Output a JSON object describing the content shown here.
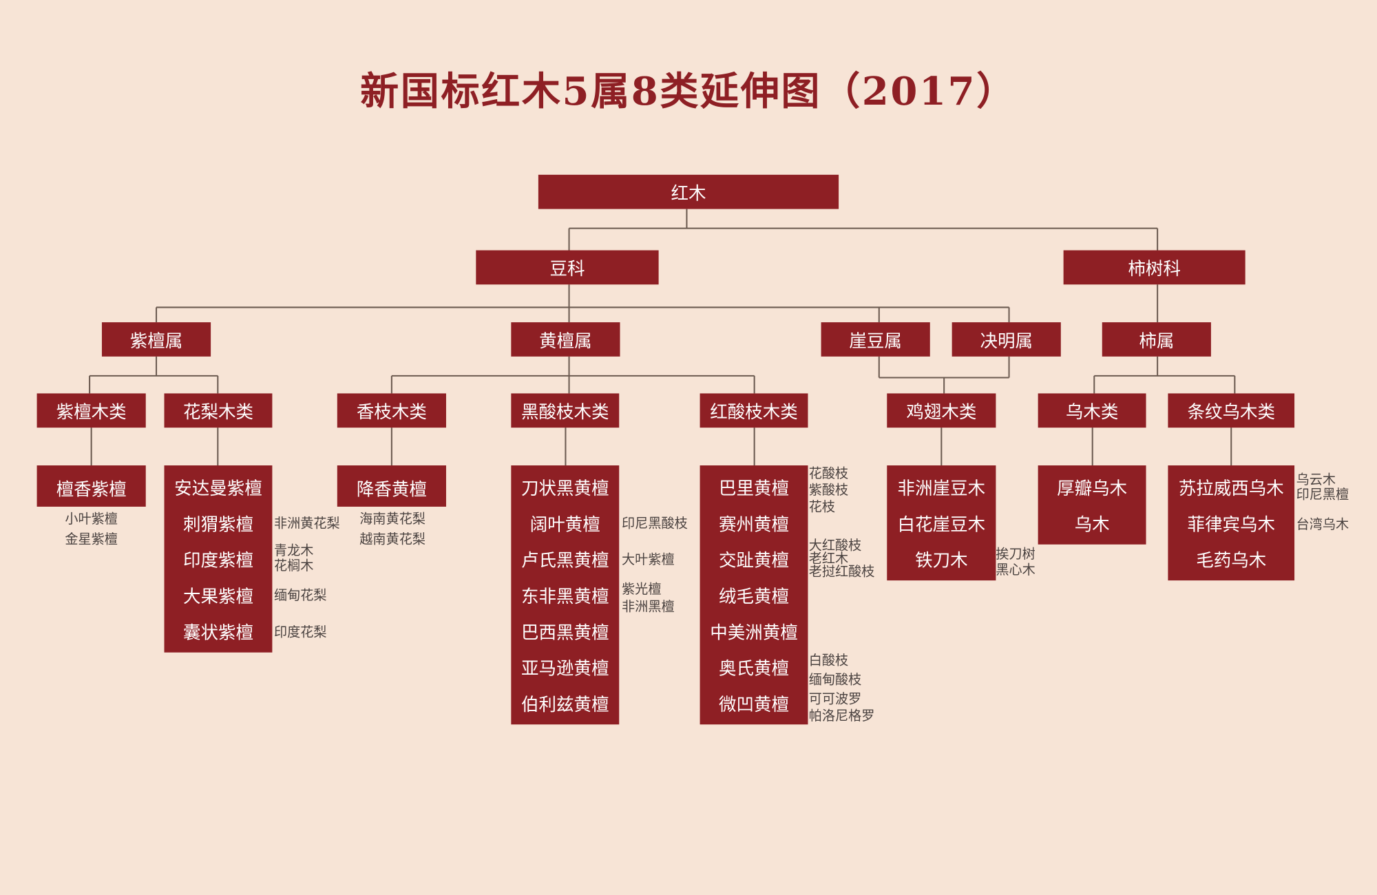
{
  "title": "新国标红木5属8类延伸图（2017）",
  "colors": {
    "background": "#f7e4d6",
    "box": "#8e1f24",
    "box_text": "#ffffff",
    "title": "#8e1f24",
    "connector": "#6b5a50"
  },
  "root": "红木",
  "families": [
    "豆科",
    "柿树科"
  ],
  "genera": [
    "紫檀属",
    "黄檀属",
    "崖豆属",
    "决明属",
    "柿属"
  ],
  "classes": [
    {
      "name": "紫檀木类",
      "species": [
        "檀香紫檀"
      ]
    },
    {
      "name": "花梨木类",
      "species": [
        "安达曼紫檀",
        "刺猬紫檀",
        "印度紫檀",
        "大果紫檀",
        "囊状紫檀"
      ]
    },
    {
      "name": "香枝木类",
      "species": [
        "降香黄檀"
      ]
    },
    {
      "name": "黑酸枝木类",
      "species": [
        "刀状黑黄檀",
        "阔叶黄檀",
        "卢氏黑黄檀",
        "东非黑黄檀",
        "巴西黑黄檀",
        "亚马逊黄檀",
        "伯利兹黄檀"
      ]
    },
    {
      "name": "红酸枝木类",
      "species": [
        "巴里黄檀",
        "赛州黄檀",
        "交趾黄檀",
        "绒毛黄檀",
        "中美洲黄檀",
        "奥氏黄檀",
        "微凹黄檀"
      ]
    },
    {
      "name": "鸡翅木类",
      "species": [
        "非洲崖豆木",
        "白花崖豆木",
        "铁刀木"
      ]
    },
    {
      "name": "乌木类",
      "species": [
        "厚瓣乌木",
        "乌木"
      ]
    },
    {
      "name": "条纹乌木类",
      "species": [
        "苏拉威西乌木",
        "菲律宾乌木",
        "毛药乌木"
      ]
    }
  ],
  "aliases": [
    [
      "小叶紫檀",
      "金星紫檀"
    ],
    [
      "非洲黄花梨"
    ],
    [
      "青龙木",
      "花榈木"
    ],
    [
      "缅甸花梨"
    ],
    [
      "印度花梨"
    ],
    [
      "海南黄花梨",
      "越南黄花梨"
    ],
    [
      "印尼黑酸枝"
    ],
    [
      "大叶紫檀"
    ],
    [
      "紫光檀",
      "非洲黑檀"
    ],
    [
      "花酸枝",
      "紫酸枝",
      "花枝"
    ],
    [
      "大红酸枝",
      "老红木",
      "老挝红酸枝"
    ],
    [
      "白酸枝",
      "缅甸酸枝"
    ],
    [
      "可可波罗",
      "帕洛尼格罗"
    ],
    [
      "挨刀树",
      "黑心木"
    ],
    [
      "乌云木",
      "印尼黑檀"
    ],
    [
      "台湾乌木"
    ]
  ]
}
